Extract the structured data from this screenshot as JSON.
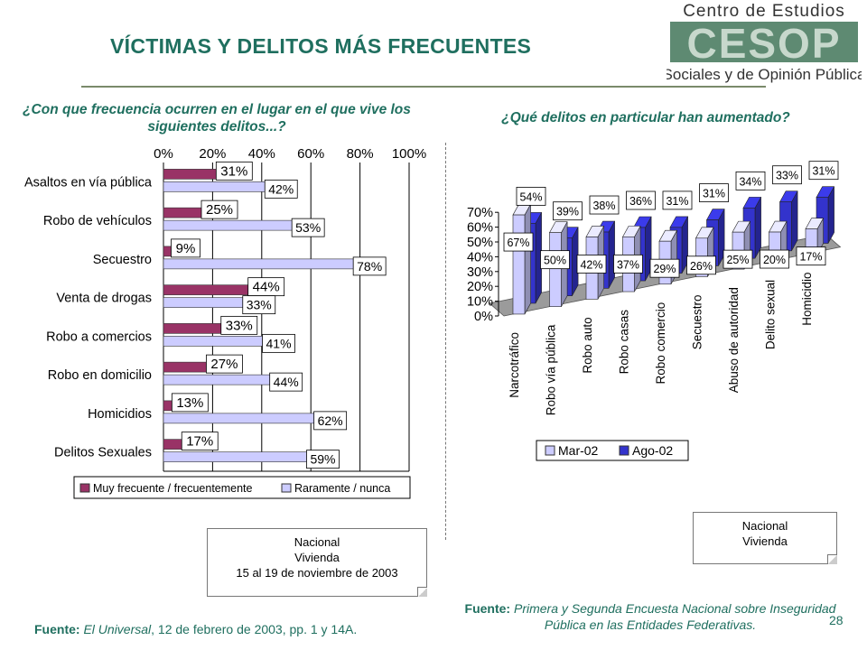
{
  "header": {
    "title": "VÍCTIMAS Y DELITOS MÁS FRECUENTES",
    "logo": {
      "line1": "Centro de Estudios",
      "mark": "CESOP",
      "line2": "Sociales y de Opinión Pública",
      "colors": {
        "mark": "#5e8a72",
        "text": "#333333"
      }
    }
  },
  "left_question": "¿Con que frecuencia ocurren en el lugar en el que vive los siguientes delitos...?",
  "right_question": "¿Qué delitos en particular han aumentado?",
  "chart_data": [
    {
      "type": "bar",
      "orientation": "horizontal",
      "categories": [
        "Asaltos en vía pública",
        "Robo de vehículos",
        "Secuestro",
        "Venta de drogas",
        "Robo a comercios",
        "Robo en domicilio",
        "Homicidios",
        "Delitos Sexuales"
      ],
      "series": [
        {
          "name": "Muy frecuente / frecuentemente",
          "color": "#993366",
          "values": [
            31,
            25,
            9,
            44,
            33,
            27,
            13,
            17
          ],
          "labels": [
            "31%",
            "25%",
            "9%",
            "44%",
            "33%",
            "27%",
            "13%",
            "17%"
          ]
        },
        {
          "name": "Raramente / nunca",
          "color": "#ccccff",
          "values": [
            42,
            53,
            78,
            33,
            41,
            44,
            62,
            59
          ],
          "labels": [
            "42%",
            "53%",
            "78%",
            "33%",
            "41%",
            "44%",
            "62%",
            "59%"
          ]
        }
      ],
      "xticks": [
        "0%",
        "20%",
        "40%",
        "60%",
        "80%",
        "100%"
      ],
      "xlim": [
        0,
        100
      ],
      "grid": true,
      "legend": "bottom"
    },
    {
      "type": "bar",
      "style": "3d-column",
      "categories": [
        "Narcotráfico",
        "Robo vía pública",
        "Robo auto",
        "Robo casas",
        "Robo comercio",
        "Secuestro",
        "Abuso de autoridad",
        "Delito sexual",
        "Homicidio"
      ],
      "series": [
        {
          "name": "Mar-02",
          "color": "#ccccff",
          "values": [
            67,
            50,
            42,
            37,
            29,
            26,
            25,
            20,
            17
          ],
          "labels": [
            "67%",
            "50%",
            "42%",
            "37%",
            "29%",
            "26%",
            "25%",
            "20%",
            "17%"
          ]
        },
        {
          "name": "Ago-02",
          "color": "#3333cc",
          "values": [
            54,
            39,
            38,
            36,
            31,
            31,
            34,
            33,
            31
          ],
          "labels": [
            "54%",
            "39%",
            "38%",
            "36%",
            "31%",
            "31%",
            "34%",
            "33%",
            "31%"
          ]
        }
      ],
      "yticks": [
        "0%",
        "10%",
        "20%",
        "30%",
        "40%",
        "50%",
        "60%",
        "70%"
      ],
      "ylim": [
        0,
        70
      ],
      "legend": "bottom"
    }
  ],
  "notes": {
    "left": [
      "Nacional",
      "Vivienda",
      "15 al 19 de noviembre de 2003"
    ],
    "right": [
      "Nacional",
      "Vivienda"
    ]
  },
  "sources": {
    "left_label": "Fuente:",
    "left_text": "El Universal",
    "left_rest": ", 12 de febrero de 2003, pp. 1 y 14A.",
    "right_label": "Fuente:",
    "right_text": "Primera y Segunda Encuesta Nacional sobre Inseguridad Pública en las Entidades Federativas."
  },
  "page_number": "28"
}
